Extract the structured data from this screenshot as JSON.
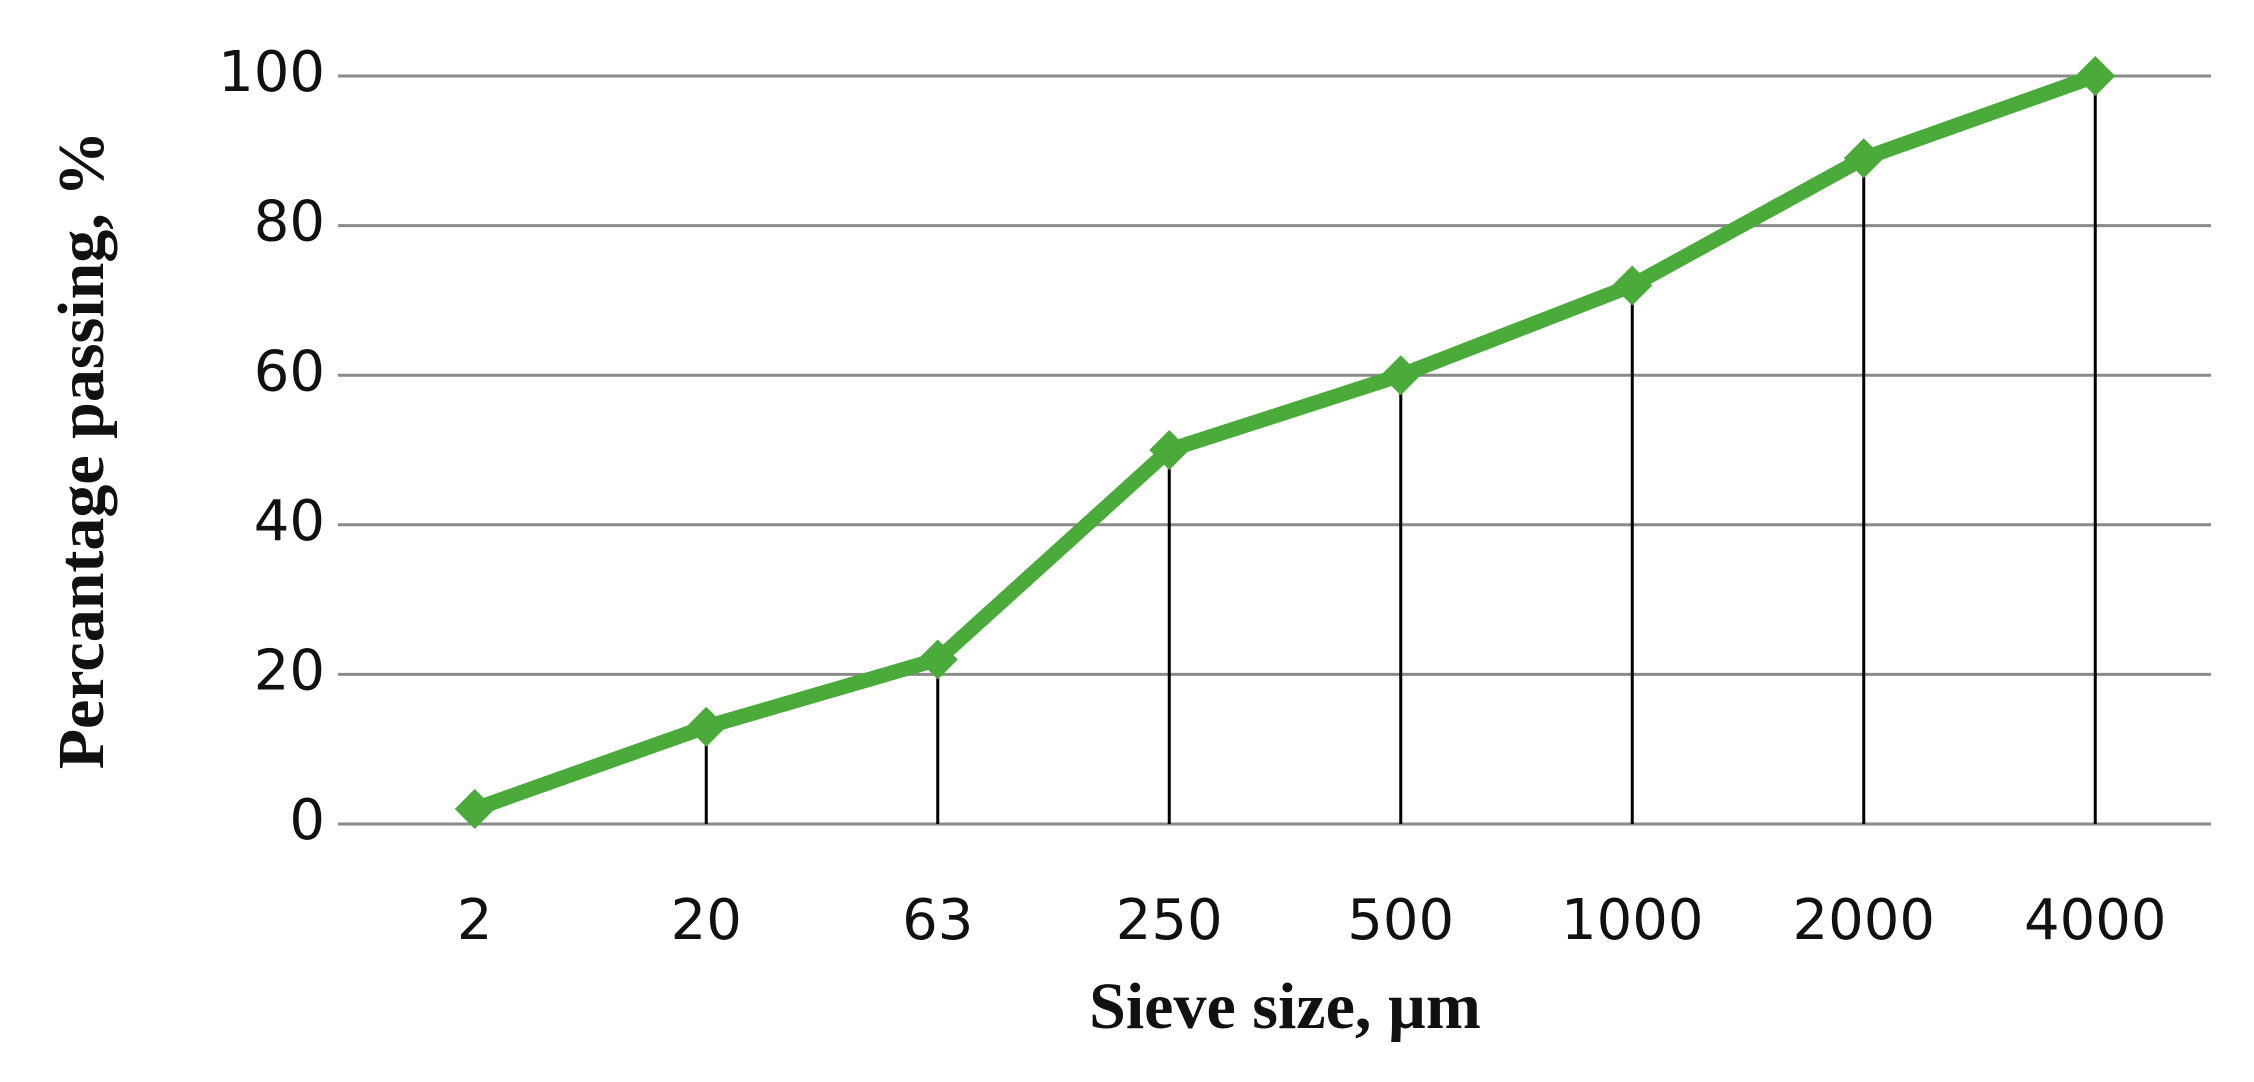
{
  "chart_data": {
    "type": "line",
    "x_label": "Sieve size, µm",
    "y_label": "Percantage passing, %",
    "categories": [
      "2",
      "20",
      "63",
      "250",
      "500",
      "1000",
      "2000",
      "4000"
    ],
    "values": [
      2,
      13,
      22,
      50,
      60,
      72,
      89,
      100
    ],
    "color": "#4aab3a",
    "ylim": [
      0,
      100
    ],
    "yticks": [
      0,
      20,
      40,
      60,
      80,
      100
    ],
    "grid": true,
    "drop_lines": true
  }
}
